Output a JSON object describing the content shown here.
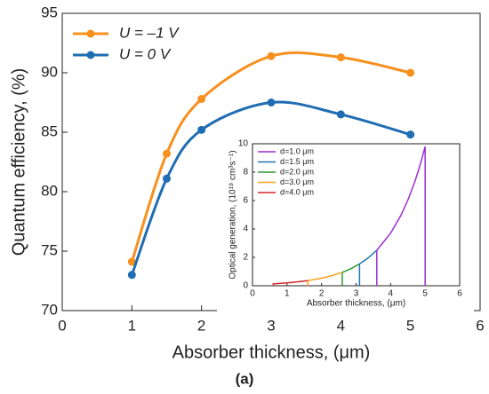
{
  "chart_data": [
    {
      "type": "line",
      "xlabel": "Absorber thickness, (μm)",
      "ylabel": "Quantum efficiency, (%)",
      "xlim": [
        0,
        6
      ],
      "xticks": [
        0,
        1,
        2,
        3,
        4,
        5,
        6
      ],
      "ylim": [
        70,
        95
      ],
      "yticks": [
        70,
        75,
        80,
        85,
        90,
        95
      ],
      "smooth": true,
      "markers": true,
      "legend": "upper left",
      "series": [
        {
          "name": "U = –1 V",
          "color": "#f7901e",
          "x": [
            1,
            1.5,
            2,
            3,
            4,
            5
          ],
          "values": [
            74.1,
            83.2,
            87.8,
            91.4,
            91.3,
            90.0
          ]
        },
        {
          "name": "U = 0 V",
          "color": "#1f6db3",
          "x": [
            1,
            1.5,
            2,
            3,
            4,
            5
          ],
          "values": [
            73.0,
            81.1,
            85.2,
            87.5,
            86.5,
            84.8
          ]
        }
      ]
    },
    {
      "type": "line",
      "xlabel": "Absorber thickness, (μm)",
      "ylabel": "Optical generation, (10¹⁹ cm³s⁻¹)",
      "xlim": [
        0,
        6
      ],
      "xticks": [
        0,
        1,
        2,
        3,
        4,
        5,
        6
      ],
      "ylim": [
        0,
        10
      ],
      "yticks": [
        0,
        2,
        4,
        6,
        8,
        10
      ],
      "smooth": false,
      "markers": false,
      "legend": "upper left",
      "series": [
        {
          "name": "d=1.0 μm",
          "color": "#9b2fd0",
          "x": [
            3.6,
            3.6,
            4.0,
            4.3,
            4.5,
            4.7,
            4.8,
            4.9,
            5.0,
            5.0
          ],
          "values": [
            0,
            2.5,
            3.7,
            4.96,
            6.03,
            7.32,
            8.08,
            8.89,
            9.8,
            0
          ]
        },
        {
          "name": "d=1.5 μm",
          "color": "#1f77b4",
          "x": [
            3.1,
            3.1,
            3.35,
            3.6
          ],
          "values": [
            0,
            1.54,
            1.96,
            2.5
          ]
        },
        {
          "name": "d=2.0 μm",
          "color": "#2a9a2a",
          "x": [
            2.6,
            2.6,
            2.85,
            3.1
          ],
          "values": [
            0,
            0.94,
            1.2,
            1.54
          ]
        },
        {
          "name": "d=3.0 μm",
          "color": "#ff9f1c",
          "x": [
            1.6,
            1.6,
            2.0,
            2.3,
            2.6
          ],
          "values": [
            0,
            0.36,
            0.53,
            0.71,
            0.94
          ]
        },
        {
          "name": "d=4.0 μm",
          "color": "#d62728",
          "x": [
            0.6,
            0.6,
            1.0,
            1.3,
            1.6
          ],
          "values": [
            0,
            0.13,
            0.2,
            0.27,
            0.36
          ]
        }
      ]
    }
  ],
  "caption": "(a)"
}
